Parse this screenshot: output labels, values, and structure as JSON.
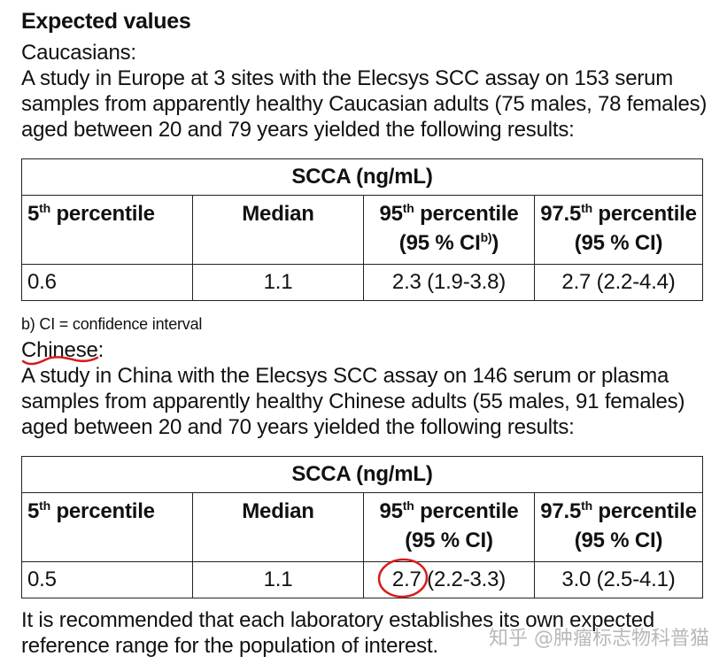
{
  "heading": "Expected values",
  "caucasian": {
    "subtitle": "Caucasians:",
    "lines": [
      "A study in Europe at 3 sites with the Elecsys SCC assay on 153 serum",
      "samples from apparently healthy Caucasian adults (75 males, 78 females)",
      "aged between 20 and 79 years yielded the following results:"
    ],
    "table": {
      "title": "SCCA (ng/mL)",
      "headers": {
        "p5": "percentile",
        "p5_num": "5",
        "p5_sup": "th",
        "median": "Median",
        "p95_num": "95",
        "p95_sup": "th",
        "p95": "percentile",
        "p95_ci": "(95 % CI",
        "p95_ci_sup": "b)",
        "p95_ci_close": ")",
        "p975_num": "97.5",
        "p975_sup": "th",
        "p975": "percentile",
        "p975_ci": "(95 % CI)"
      },
      "row": [
        "0.6",
        "1.1",
        "2.3 (1.9-3.8)",
        "2.7 (2.2-4.4)"
      ]
    }
  },
  "footnote": "b) CI = confidence interval",
  "chinese": {
    "subtitle": "Chinese:",
    "lines": [
      "A study in China with the Elecsys SCC assay on 146 serum or plasma",
      "samples from apparently healthy Chinese adults (55 males, 91 females)",
      "aged between 20 and 70 years yielded the following results:"
    ],
    "table": {
      "title": "SCCA (ng/mL)",
      "headers": {
        "p5_num": "5",
        "p5_sup": "th",
        "p5": "percentile",
        "median": "Median",
        "p95_num": "95",
        "p95_sup": "th",
        "p95": "percentile",
        "p95_ci": "(95 % CI)",
        "p975_num": "97.5",
        "p975_sup": "th",
        "p975": "percentile",
        "p975_ci": "(95 % CI)"
      },
      "row": [
        "0.5",
        "1.1",
        "2.7 (2.2-3.3)",
        "3.0 (2.5-4.1)"
      ]
    }
  },
  "closing": [
    "It is recommended that each laboratory establishes its own expected",
    "reference range for the population of interest."
  ],
  "watermark": "知乎 @肿瘤标志物科普猫",
  "annotation_color": "#d81b1b"
}
